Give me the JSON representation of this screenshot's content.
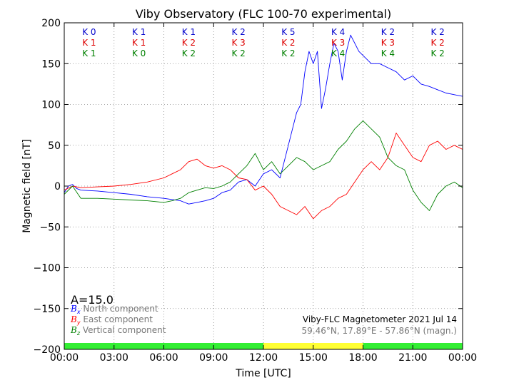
{
  "chart_data": {
    "type": "line",
    "title": "Viby Observatory (FLC 100-70 experimental)",
    "xlabel": "Time [UTC]",
    "ylabel": "Magnetic field [nT]",
    "xlim": [
      0,
      24
    ],
    "ylim": [
      -200,
      200
    ],
    "x_tick_labels": [
      "00:00",
      "03:00",
      "06:00",
      "09:00",
      "12:00",
      "15:00",
      "18:00",
      "21:00",
      "00:00"
    ],
    "y_ticks": [
      -200,
      -150,
      -100,
      -50,
      0,
      50,
      100,
      150,
      200
    ],
    "y_tick_labels": [
      "−200",
      "−150",
      "−100",
      "−50",
      "0",
      "50",
      "100",
      "150",
      "200"
    ],
    "grid": true,
    "activity_label": "A=15.0",
    "k_indices": {
      "x": [
        1.5,
        4.5,
        7.5,
        10.5,
        13.5,
        16.5,
        19.5,
        22.5
      ],
      "rows": [
        {
          "component": "north",
          "color": "#0000cc",
          "labels": [
            "K 0",
            "K 1",
            "K 1",
            "K 2",
            "K 5",
            "K 4",
            "K 2",
            "K 2"
          ]
        },
        {
          "component": "east",
          "color": "#dd0000",
          "labels": [
            "K 1",
            "K 1",
            "K 2",
            "K 3",
            "K 2",
            "K 3",
            "K 3",
            "K 2"
          ]
        },
        {
          "component": "vertical",
          "color": "#008000",
          "labels": [
            "K 1",
            "K 0",
            "K 2",
            "K 2",
            "K 2",
            "K 4",
            "K 4",
            "K 2"
          ]
        }
      ]
    },
    "legend": {
      "placement": "bottom-left",
      "entries": [
        {
          "symbol": "B",
          "sub": "x",
          "text": "North component",
          "color": "#0000ff"
        },
        {
          "symbol": "B",
          "sub": "y",
          "text": "East component",
          "color": "#ff0000"
        },
        {
          "symbol": "B",
          "sub": "z",
          "text": "Vertical component",
          "color": "#008000"
        }
      ]
    },
    "station_text": {
      "line1": "Viby-FLC Magnetometer 2021 Jul 14",
      "line2": "59.46°N, 17.89°E - 57.86°N (magn.)"
    },
    "status_bar": [
      {
        "from": 0,
        "to": 12,
        "color": "#33ee33"
      },
      {
        "from": 12,
        "to": 18,
        "color": "#ffff33"
      },
      {
        "from": 18,
        "to": 24,
        "color": "#33ee33"
      }
    ],
    "series": [
      {
        "name": "North component",
        "color": "#0000ff",
        "x": [
          0,
          0.25,
          0.5,
          0.75,
          1,
          2,
          3,
          4,
          5,
          6,
          7,
          7.5,
          8,
          8.5,
          9,
          9.5,
          10,
          10.5,
          11,
          11.5,
          12,
          12.5,
          13,
          13.25,
          13.5,
          13.75,
          14,
          14.25,
          14.5,
          14.75,
          15,
          15.25,
          15.5,
          15.75,
          16,
          16.25,
          16.5,
          16.75,
          17,
          17.25,
          17.5,
          17.75,
          18,
          18.5,
          19,
          19.5,
          20,
          20.5,
          21,
          21.5,
          22,
          22.5,
          23,
          23.5,
          24
        ],
        "values": [
          -8,
          0,
          2,
          -3,
          -5,
          -6,
          -8,
          -10,
          -13,
          -15,
          -18,
          -22,
          -20,
          -18,
          -15,
          -8,
          -5,
          5,
          8,
          0,
          15,
          20,
          10,
          30,
          50,
          70,
          90,
          100,
          140,
          165,
          150,
          165,
          95,
          120,
          150,
          175,
          165,
          130,
          165,
          185,
          175,
          165,
          160,
          150,
          150,
          145,
          140,
          130,
          135,
          125,
          122,
          118,
          114,
          112,
          110
        ]
      },
      {
        "name": "East component",
        "color": "#ff0000",
        "x": [
          0,
          0.5,
          1,
          2,
          3,
          4,
          5,
          6,
          6.5,
          7,
          7.5,
          8,
          8.5,
          9,
          9.5,
          10,
          10.5,
          11,
          11.5,
          12,
          12.5,
          13,
          13.5,
          14,
          14.5,
          15,
          15.5,
          16,
          16.5,
          17,
          17.5,
          18,
          18.5,
          19,
          19.5,
          20,
          20.5,
          21,
          21.5,
          22,
          22.5,
          23,
          23.5,
          24
        ],
        "values": [
          -5,
          0,
          -2,
          -1,
          0,
          2,
          5,
          10,
          15,
          20,
          30,
          33,
          25,
          22,
          25,
          20,
          10,
          8,
          -5,
          0,
          -10,
          -25,
          -30,
          -35,
          -25,
          -40,
          -30,
          -25,
          -15,
          -10,
          5,
          20,
          30,
          20,
          35,
          65,
          50,
          35,
          30,
          50,
          55,
          45,
          50,
          45
        ]
      },
      {
        "name": "Vertical component",
        "color": "#008000",
        "x": [
          0,
          0.5,
          1,
          2,
          3,
          4,
          5,
          6,
          6.5,
          7,
          7.5,
          8,
          8.5,
          9,
          9.5,
          10,
          10.5,
          11,
          11.5,
          12,
          12.5,
          13,
          13.5,
          14,
          14.5,
          15,
          15.5,
          16,
          16.5,
          17,
          17.5,
          18,
          18.5,
          19,
          19.5,
          20,
          20.5,
          21,
          21.5,
          22,
          22.5,
          23,
          23.5,
          24
        ],
        "values": [
          -10,
          0,
          -15,
          -15,
          -16,
          -17,
          -18,
          -20,
          -18,
          -15,
          -8,
          -5,
          -2,
          -3,
          0,
          5,
          15,
          25,
          40,
          20,
          30,
          15,
          25,
          35,
          30,
          20,
          25,
          30,
          45,
          55,
          70,
          80,
          70,
          60,
          35,
          25,
          20,
          -5,
          -20,
          -30,
          -10,
          0,
          5,
          -2
        ]
      }
    ]
  }
}
